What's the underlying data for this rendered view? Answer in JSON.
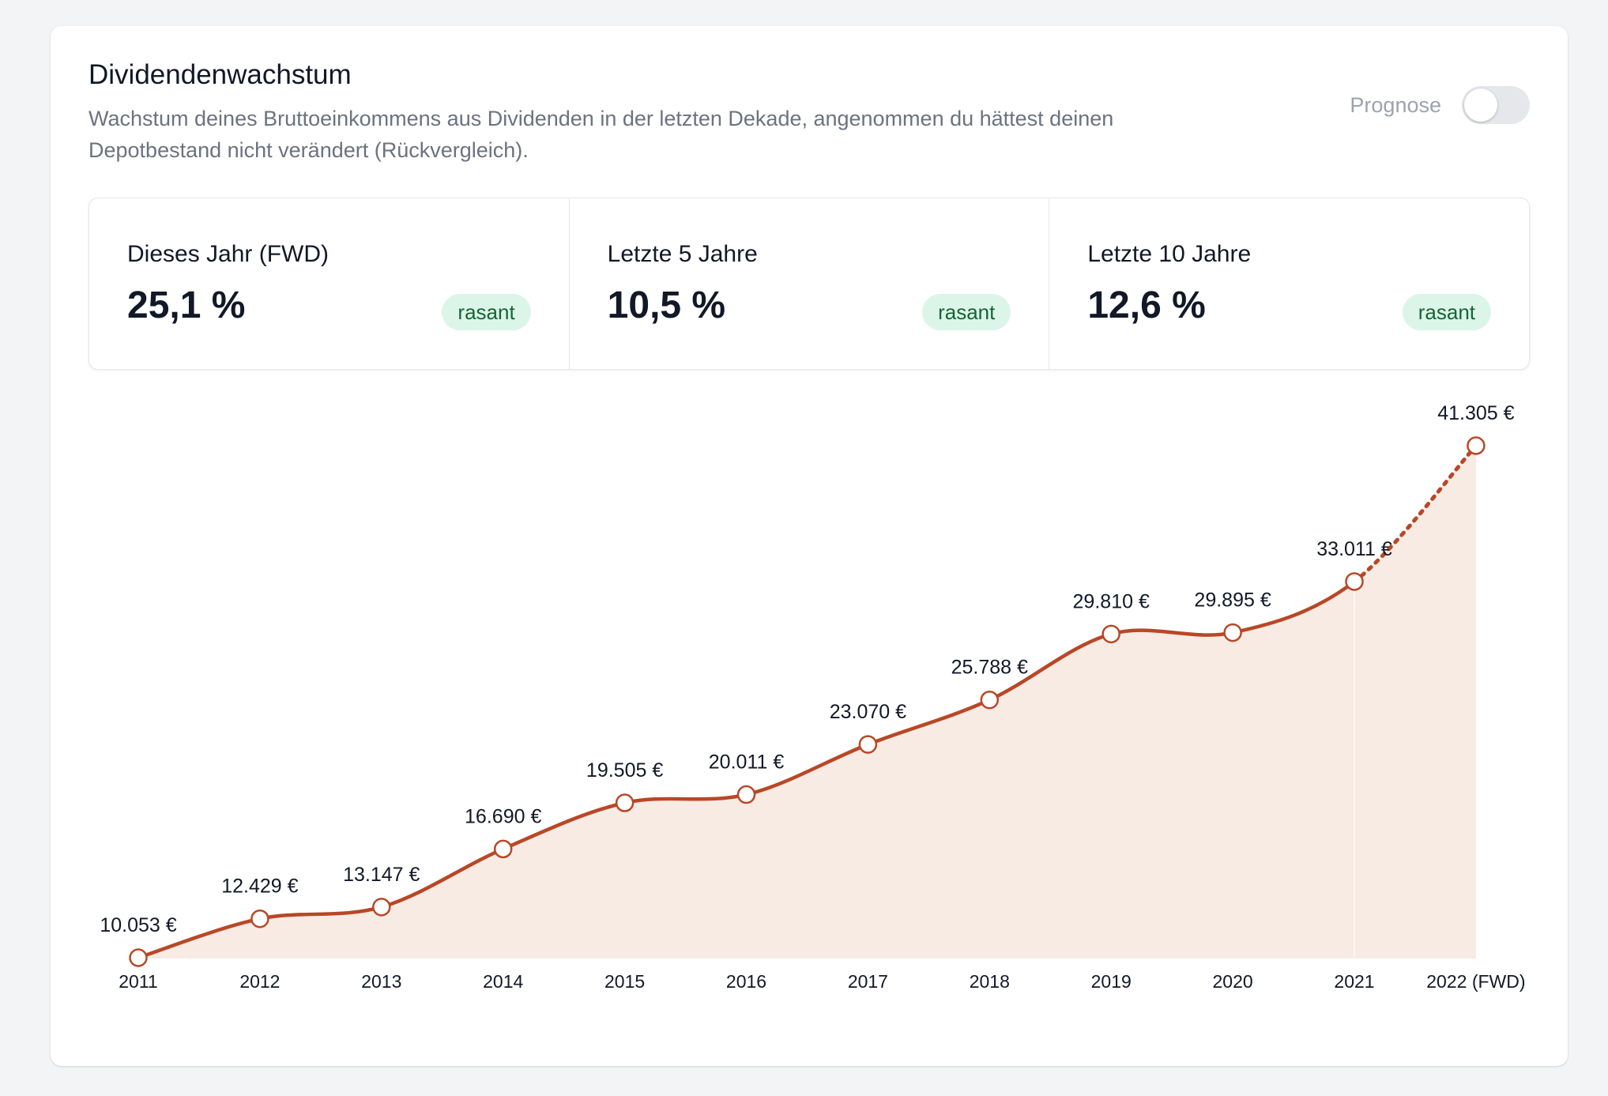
{
  "header": {
    "title": "Dividendenwachstum",
    "subtitle": "Wachstum deines Bruttoeinkommens aus Dividenden in der letzten Dekade, angenommen du hättest deinen Depotbestand nicht verändert (Rückvergleich).",
    "prognose_label": "Prognose",
    "prognose_on": false
  },
  "stats": [
    {
      "label": "Dieses Jahr (FWD)",
      "value": "25,1 %",
      "badge": "rasant"
    },
    {
      "label": "Letzte 5 Jahre",
      "value": "10,5 %",
      "badge": "rasant"
    },
    {
      "label": "Letzte 10 Jahre",
      "value": "12,6 %",
      "badge": "rasant"
    }
  ],
  "colors": {
    "line": "#b94726",
    "area": "#f8ebe4",
    "badge_bg": "#dcf5e9",
    "badge_text": "#166534"
  },
  "chart_data": {
    "type": "line",
    "categories": [
      "2011",
      "2012",
      "2013",
      "2014",
      "2015",
      "2016",
      "2017",
      "2018",
      "2019",
      "2020",
      "2021",
      "2022 (FWD)"
    ],
    "values": [
      10053,
      12429,
      13147,
      16690,
      19505,
      20011,
      23070,
      25788,
      29810,
      29895,
      33011,
      41305
    ],
    "value_labels": [
      "10.053 €",
      "12.429 €",
      "13.147 €",
      "16.690 €",
      "19.505 €",
      "20.011 €",
      "23.070 €",
      "25.788 €",
      "29.810 €",
      "29.895 €",
      "33.011 €",
      "41.305 €"
    ],
    "forecast_from_index": 10,
    "area_fill": true,
    "grid": false,
    "legend": "none",
    "ylim": [
      10053,
      41305
    ]
  }
}
